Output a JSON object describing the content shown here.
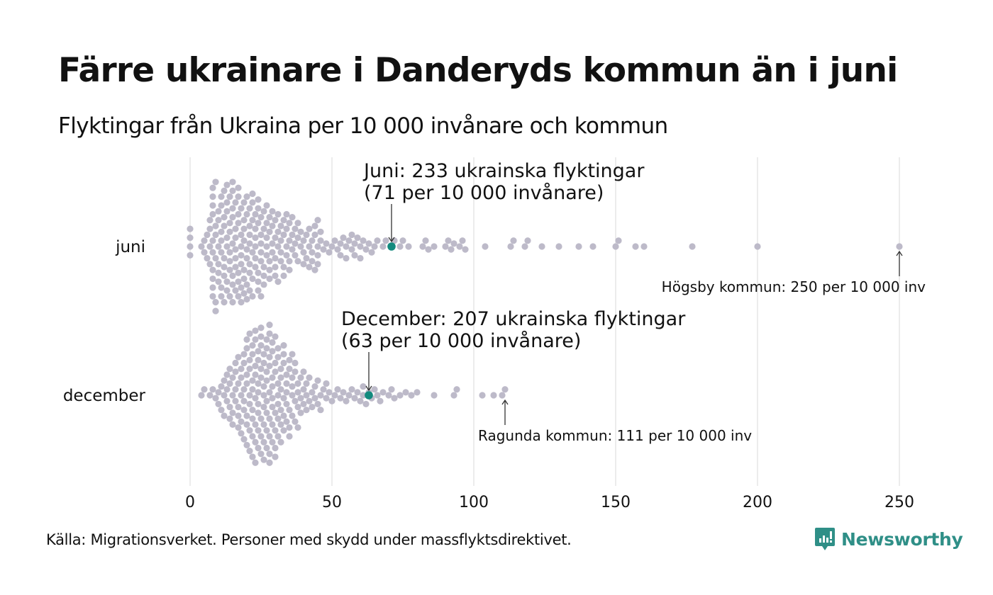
{
  "header": {
    "title": "Färre ukrainare i Danderyds kommun än i juni",
    "subtitle": "Flyktingar från Ukraina per 10 000 invånare och kommun"
  },
  "footer": {
    "source": "Källa: Migrationsverket. Personer med skydd under massflyktsdirektivet.",
    "logo_text": "Newsworthy"
  },
  "colors": {
    "dot": "#bdbac9",
    "highlight": "#138a7e",
    "grid": "#d9d9d9",
    "text": "#111111",
    "brand": "#2f8f87"
  },
  "chart_data": {
    "type": "scatter",
    "subtype": "beeswarm",
    "title": "Färre ukrainare i Danderyds kommun än i juni",
    "subtitle": "Flyktingar från Ukraina per 10 000 invånare och kommun",
    "xlabel": "",
    "ylabel": "",
    "xlim": [
      0,
      250
    ],
    "xticks": [
      0,
      50,
      100,
      150,
      200,
      250
    ],
    "xtick_labels": [
      "0",
      "50",
      "100",
      "150",
      "200",
      "250"
    ],
    "grid": "vertical",
    "categories": [
      "juni",
      "december"
    ],
    "series": [
      {
        "name": "juni",
        "highlight": {
          "value": 71,
          "label_line1": "Juni: 233 ukrainska flyktingar",
          "label_line2": "(71 per 10 000 invånare)"
        },
        "max_annotation": {
          "value": 250,
          "label": "Högsby kommun: 250 per 10 000 inv"
        },
        "values": [
          0,
          0,
          0,
          0,
          4,
          5,
          5,
          6,
          6,
          7,
          7,
          7,
          7,
          8,
          8,
          8,
          8,
          8,
          8,
          8,
          8,
          8,
          8,
          9,
          9,
          9,
          9,
          9,
          9,
          10,
          10,
          10,
          10,
          10,
          10,
          11,
          11,
          11,
          11,
          11,
          11,
          11,
          12,
          12,
          12,
          12,
          12,
          12,
          12,
          13,
          13,
          13,
          13,
          13,
          13,
          13,
          14,
          14,
          14,
          14,
          14,
          14,
          14,
          15,
          15,
          15,
          15,
          15,
          15,
          15,
          15,
          16,
          16,
          16,
          16,
          16,
          16,
          16,
          17,
          17,
          17,
          17,
          17,
          17,
          17,
          18,
          18,
          18,
          18,
          18,
          18,
          18,
          19,
          19,
          19,
          19,
          19,
          19,
          19,
          20,
          20,
          20,
          20,
          20,
          20,
          21,
          21,
          21,
          21,
          21,
          21,
          21,
          22,
          22,
          22,
          22,
          22,
          22,
          23,
          23,
          23,
          23,
          23,
          23,
          24,
          24,
          24,
          24,
          24,
          24,
          25,
          25,
          25,
          25,
          25,
          25,
          26,
          26,
          26,
          26,
          26,
          27,
          27,
          27,
          27,
          27,
          28,
          28,
          28,
          28,
          28,
          29,
          29,
          29,
          29,
          30,
          30,
          30,
          30,
          30,
          31,
          31,
          31,
          31,
          32,
          32,
          32,
          32,
          33,
          33,
          33,
          33,
          34,
          34,
          34,
          34,
          35,
          35,
          35,
          35,
          36,
          36,
          36,
          37,
          37,
          37,
          38,
          38,
          38,
          39,
          39,
          40,
          40,
          40,
          41,
          41,
          42,
          42,
          42,
          43,
          43,
          43,
          44,
          44,
          44,
          45,
          45,
          45,
          45,
          46,
          46,
          47,
          48,
          49,
          50,
          51,
          52,
          53,
          53,
          54,
          55,
          55,
          56,
          57,
          57,
          58,
          58,
          59,
          60,
          60,
          61,
          62,
          63,
          64,
          65,
          66,
          68,
          69,
          71,
          72,
          74,
          75,
          77,
          82,
          83,
          84,
          86,
          90,
          91,
          92,
          93,
          95,
          96,
          97,
          104,
          113,
          114,
          118,
          119,
          124,
          130,
          137,
          142,
          150,
          151,
          157,
          160,
          177,
          200,
          250
        ]
      },
      {
        "name": "december",
        "highlight": {
          "value": 63,
          "label_line1": "December: 207 ukrainska flyktingar",
          "label_line2": "(63 per 10 000 invånare)"
        },
        "max_annotation": {
          "value": 111,
          "label": "Ragunda kommun: 111 per 10 000 inv"
        },
        "values": [
          4,
          5,
          7,
          8,
          9,
          10,
          10,
          11,
          11,
          12,
          12,
          12,
          13,
          13,
          13,
          14,
          14,
          14,
          14,
          15,
          15,
          15,
          15,
          16,
          16,
          16,
          16,
          17,
          17,
          17,
          17,
          17,
          18,
          18,
          18,
          18,
          18,
          19,
          19,
          19,
          19,
          19,
          19,
          20,
          20,
          20,
          20,
          20,
          20,
          20,
          21,
          21,
          21,
          21,
          21,
          21,
          21,
          22,
          22,
          22,
          22,
          22,
          22,
          22,
          22,
          23,
          23,
          23,
          23,
          23,
          23,
          23,
          23,
          24,
          24,
          24,
          24,
          24,
          24,
          24,
          24,
          25,
          25,
          25,
          25,
          25,
          25,
          25,
          25,
          26,
          26,
          26,
          26,
          26,
          26,
          26,
          26,
          27,
          27,
          27,
          27,
          27,
          27,
          27,
          27,
          28,
          28,
          28,
          28,
          28,
          28,
          28,
          28,
          28,
          29,
          29,
          29,
          29,
          29,
          29,
          29,
          29,
          30,
          30,
          30,
          30,
          30,
          30,
          30,
          31,
          31,
          31,
          31,
          31,
          31,
          31,
          32,
          32,
          32,
          32,
          32,
          32,
          33,
          33,
          33,
          33,
          33,
          33,
          34,
          34,
          34,
          34,
          34,
          35,
          35,
          35,
          35,
          35,
          36,
          36,
          36,
          36,
          36,
          37,
          37,
          37,
          37,
          38,
          38,
          38,
          38,
          39,
          39,
          39,
          40,
          40,
          40,
          41,
          41,
          41,
          42,
          42,
          43,
          43,
          44,
          44,
          45,
          45,
          46,
          46,
          47,
          48,
          48,
          49,
          50,
          51,
          52,
          53,
          54,
          55,
          56,
          57,
          58,
          59,
          60,
          61,
          61,
          62,
          63,
          64,
          65,
          66,
          67,
          68,
          70,
          71,
          72,
          74,
          76,
          78,
          80,
          86,
          93,
          94,
          103,
          107,
          110,
          111
        ]
      }
    ]
  }
}
